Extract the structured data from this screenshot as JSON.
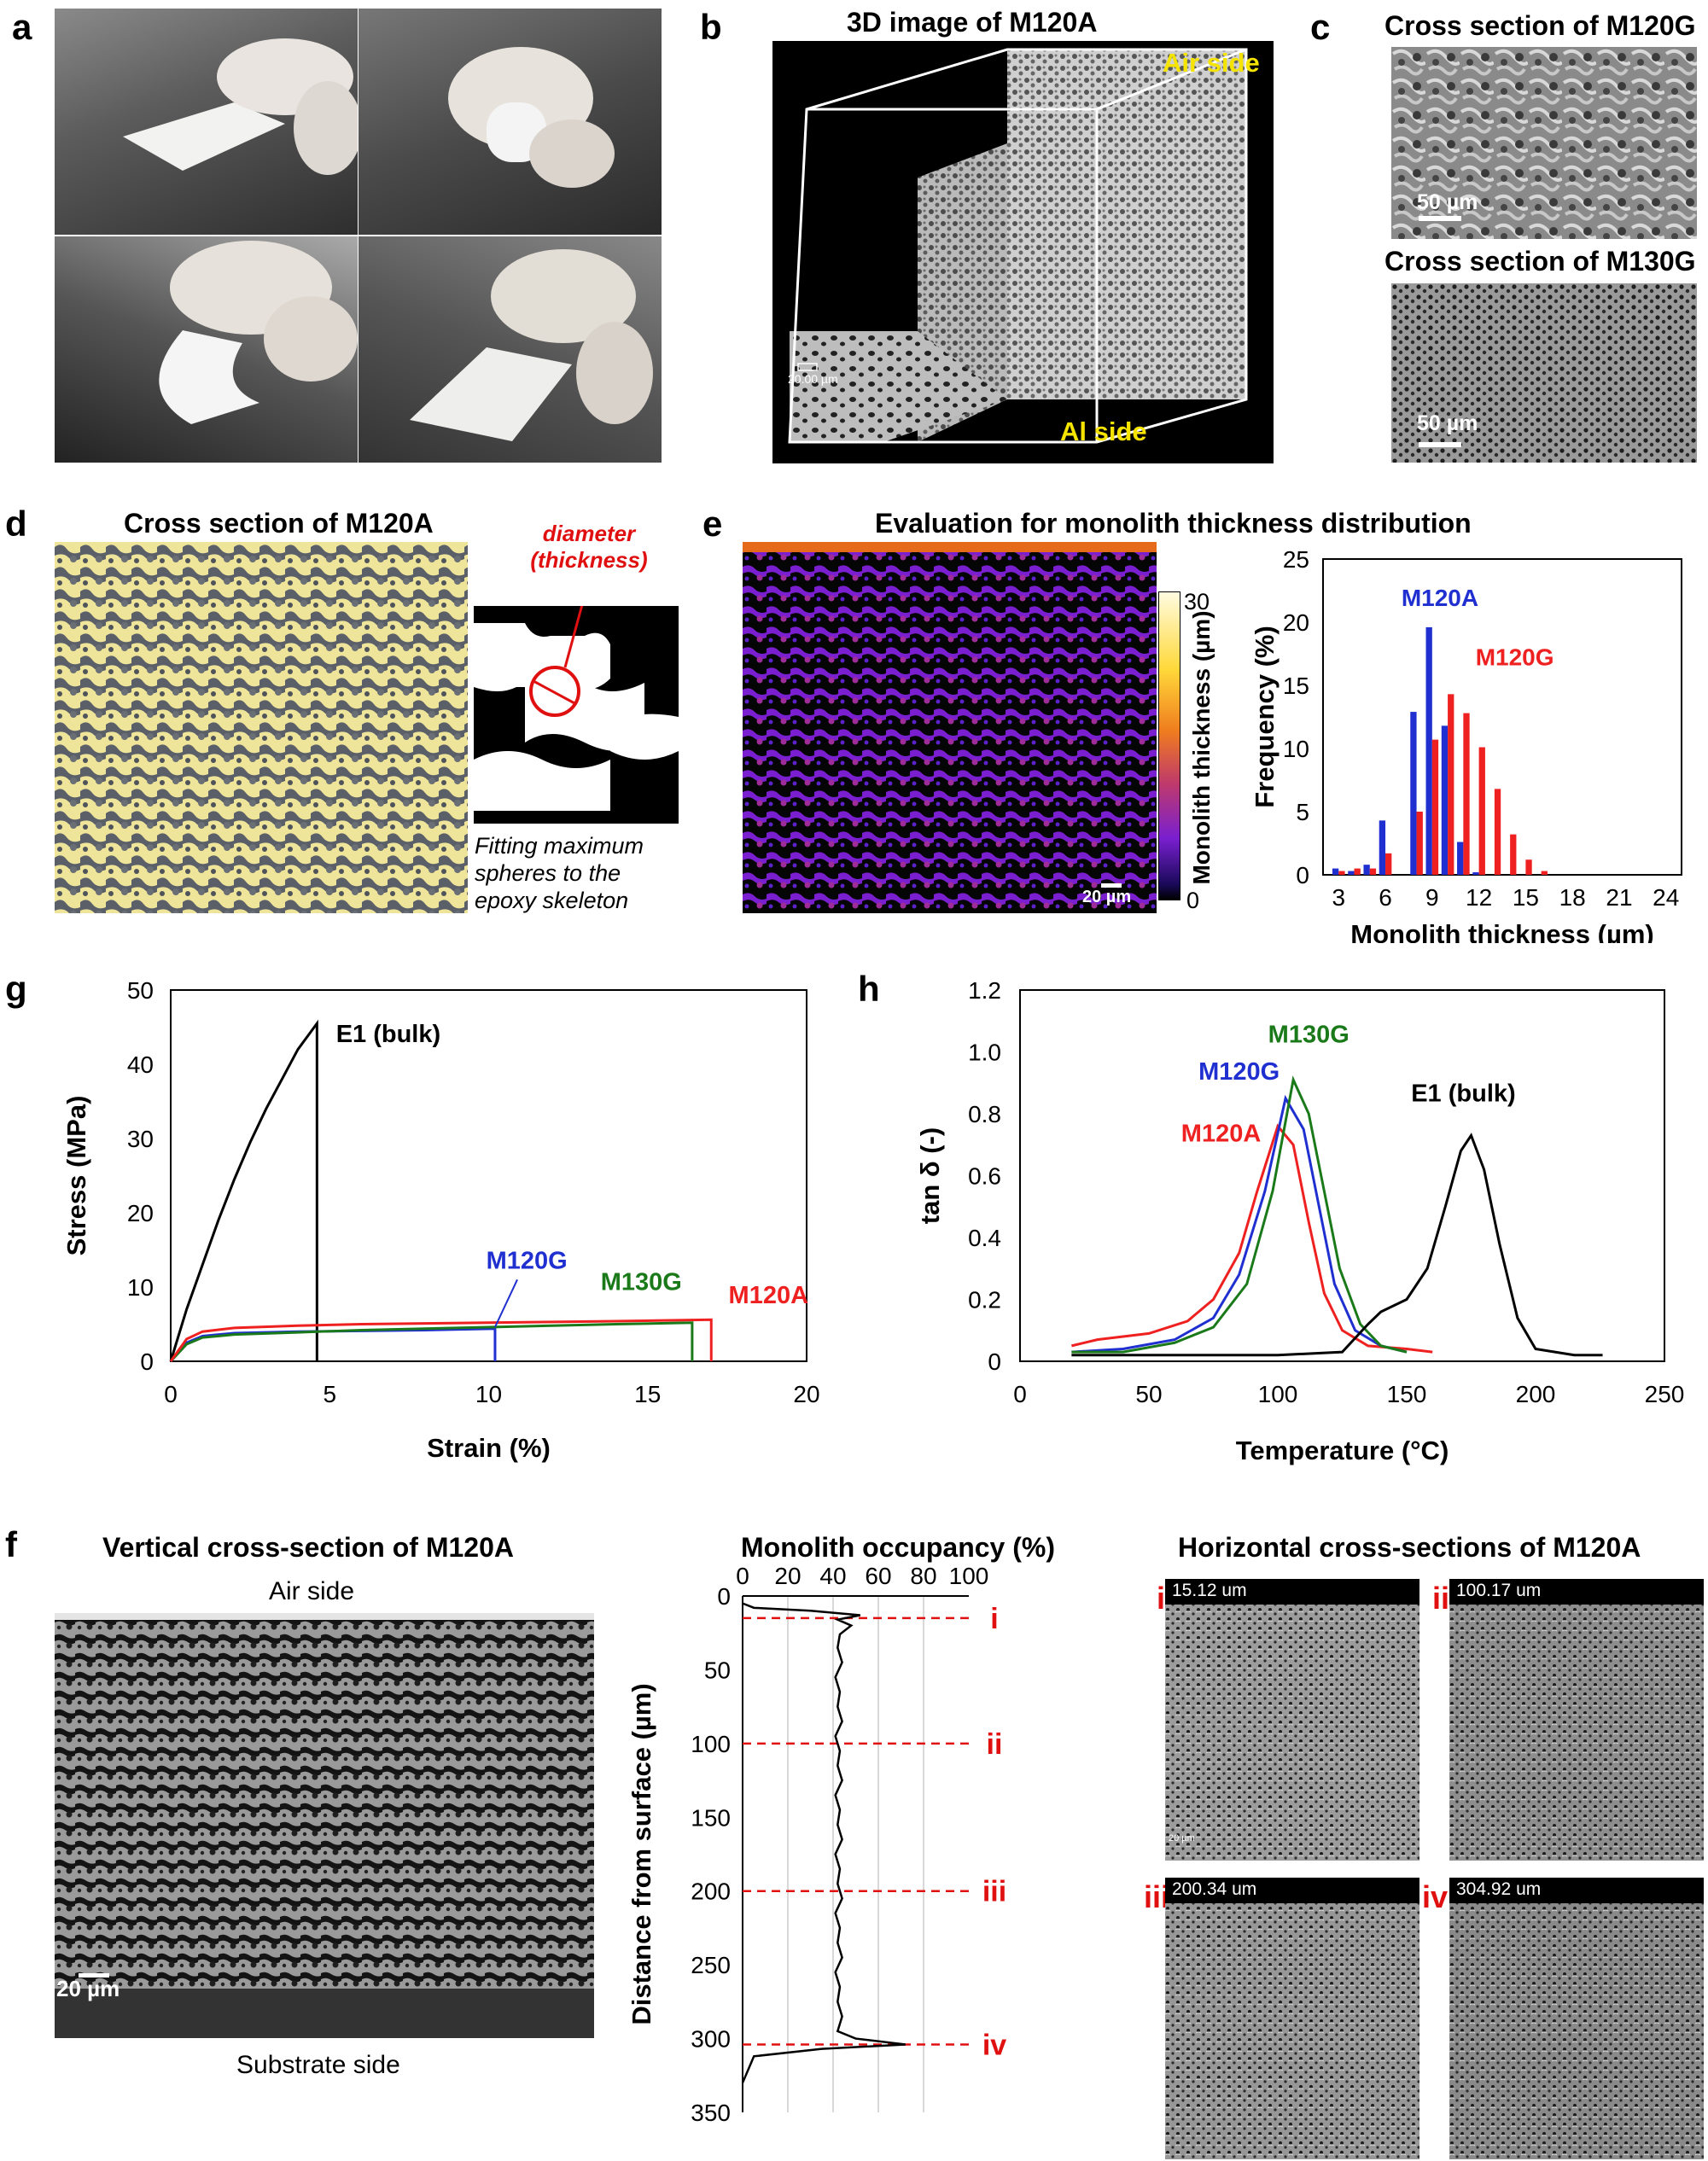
{
  "panels": {
    "a": {
      "label": "a"
    },
    "b": {
      "label": "b",
      "title": "3D image of M120A",
      "air": "Air side",
      "al": "Al side",
      "scale": "20.00 µm"
    },
    "c": {
      "label": "c",
      "title1": "Cross section of M120G",
      "title2": "Cross section of M130G",
      "scale": "50 µm"
    },
    "d": {
      "label": "d",
      "title": "Cross section of M120A",
      "annot": "diameter",
      "annot2": "(thickness)",
      "caption1": "Fitting maximum",
      "caption2": "spheres to the",
      "caption3": "epoxy skeleton"
    },
    "e": {
      "label": "e",
      "title": "Evaluation for monolith thickness distribution",
      "scale": "20 µm",
      "cbar_label": "Monolith thickness (µm)",
      "cbar_max": "30",
      "cbar_min": "0"
    },
    "g": {
      "label": "g"
    },
    "h": {
      "label": "h"
    },
    "f": {
      "label": "f",
      "title_vert": "Vertical cross-section of M120A",
      "air": "Air side",
      "substrate": "Substrate side",
      "scale": "20 µm",
      "occ_title": "Monolith occupancy (%)",
      "horiz_title": "Horizontal cross-sections of M120A",
      "horiz": [
        {
          "roman": "i",
          "depth": "15.12 um"
        },
        {
          "roman": "ii",
          "depth": "100.17 um"
        },
        {
          "roman": "iii",
          "depth": "200.34 um"
        },
        {
          "roman": "iv",
          "depth": "304.92 um"
        }
      ],
      "mini_scale": "20 µm"
    }
  },
  "chart_data": [
    {
      "id": "e-histogram",
      "type": "bar",
      "xlabel": "Monolith thickness (µm)",
      "ylabel": "Frequency (%)",
      "ylim": [
        0,
        25
      ],
      "yticks": [
        0,
        5,
        10,
        15,
        20,
        25
      ],
      "xticks": [
        3,
        6,
        9,
        12,
        15,
        18,
        21,
        24
      ],
      "x": [
        3,
        4,
        5,
        6,
        7,
        8,
        9,
        10,
        11,
        12,
        13,
        14,
        15,
        16,
        17,
        18,
        19,
        20,
        21,
        22,
        23,
        24
      ],
      "series": [
        {
          "name": "M120A",
          "color": "#1f2fd0",
          "values": [
            0.5,
            0.3,
            0.8,
            4.3,
            0,
            12.9,
            19.6,
            11.8,
            2.6,
            0.2,
            0,
            0,
            0,
            0,
            0,
            0,
            0,
            0,
            0,
            0,
            0,
            0
          ]
        },
        {
          "name": "M120G",
          "color": "#ee2020",
          "values": [
            0.3,
            0.5,
            0.5,
            1.7,
            0,
            5,
            10.7,
            14.3,
            12.8,
            10.1,
            6.8,
            3.2,
            1.2,
            0.3,
            0,
            0,
            0,
            0,
            0,
            0,
            0,
            0
          ]
        }
      ]
    },
    {
      "id": "g-stress-strain",
      "type": "line",
      "xlabel": "Strain (%)",
      "ylabel": "Stress (MPa)",
      "xlim": [
        0,
        20
      ],
      "ylim": [
        0,
        50
      ],
      "xticks": [
        0,
        5,
        10,
        15,
        20
      ],
      "yticks": [
        0,
        10,
        20,
        30,
        40,
        50
      ],
      "series": [
        {
          "name": "E1 (bulk)",
          "color": "#000000",
          "points": [
            [
              0,
              0
            ],
            [
              0.5,
              7
            ],
            [
              1,
              13
            ],
            [
              1.5,
              19
            ],
            [
              2,
              24.5
            ],
            [
              2.5,
              29.5
            ],
            [
              3,
              34
            ],
            [
              3.5,
              38
            ],
            [
              4,
              42
            ],
            [
              4.6,
              45.5
            ],
            [
              4.6,
              0
            ]
          ]
        },
        {
          "name": "M120G",
          "color": "#1f2fd0",
          "points": [
            [
              0,
              0
            ],
            [
              0.5,
              2.5
            ],
            [
              1,
              3.4
            ],
            [
              2,
              3.8
            ],
            [
              4,
              4.0
            ],
            [
              6,
              4.1
            ],
            [
              8,
              4.2
            ],
            [
              10.2,
              4.4
            ],
            [
              10.2,
              0
            ]
          ]
        },
        {
          "name": "M130G",
          "color": "#1a7a1a",
          "points": [
            [
              0,
              0
            ],
            [
              0.5,
              2.3
            ],
            [
              1,
              3.2
            ],
            [
              2,
              3.6
            ],
            [
              4,
              3.9
            ],
            [
              6,
              4.2
            ],
            [
              8,
              4.4
            ],
            [
              10,
              4.6
            ],
            [
              12,
              4.8
            ],
            [
              14,
              5.0
            ],
            [
              16.4,
              5.2
            ],
            [
              16.4,
              0
            ]
          ]
        },
        {
          "name": "M120A",
          "color": "#ee2020",
          "points": [
            [
              0,
              0
            ],
            [
              0.5,
              3
            ],
            [
              1,
              4
            ],
            [
              2,
              4.5
            ],
            [
              4,
              4.8
            ],
            [
              6,
              5
            ],
            [
              8,
              5.1
            ],
            [
              10,
              5.2
            ],
            [
              12,
              5.3
            ],
            [
              14,
              5.4
            ],
            [
              17,
              5.6
            ],
            [
              17,
              0
            ]
          ]
        }
      ]
    },
    {
      "id": "h-tan-delta",
      "type": "line",
      "xlabel": "Temperature (°C)",
      "ylabel": "tan δ (-)",
      "xlim": [
        0,
        250
      ],
      "ylim": [
        0,
        1.2
      ],
      "xticks": [
        0,
        50,
        100,
        150,
        200,
        250
      ],
      "yticks": [
        0,
        0.2,
        0.4,
        0.6,
        0.8,
        1.0,
        1.2
      ],
      "ytick_labels": [
        "0",
        "0.2",
        "0.4",
        "0.6",
        "0.8",
        "1.0",
        "1.2"
      ],
      "series": [
        {
          "name": "M120A",
          "color": "#ee2020",
          "points": [
            [
              20,
              0.05
            ],
            [
              30,
              0.07
            ],
            [
              50,
              0.09
            ],
            [
              65,
              0.13
            ],
            [
              75,
              0.2
            ],
            [
              85,
              0.35
            ],
            [
              92,
              0.55
            ],
            [
              100,
              0.76
            ],
            [
              106,
              0.7
            ],
            [
              112,
              0.45
            ],
            [
              118,
              0.22
            ],
            [
              125,
              0.1
            ],
            [
              135,
              0.05
            ],
            [
              150,
              0.04
            ],
            [
              160,
              0.03
            ]
          ]
        },
        {
          "name": "M120G",
          "color": "#1f2fd0",
          "points": [
            [
              20,
              0.03
            ],
            [
              40,
              0.04
            ],
            [
              60,
              0.07
            ],
            [
              75,
              0.14
            ],
            [
              85,
              0.28
            ],
            [
              95,
              0.55
            ],
            [
              103,
              0.85
            ],
            [
              110,
              0.75
            ],
            [
              116,
              0.5
            ],
            [
              122,
              0.25
            ],
            [
              130,
              0.1
            ],
            [
              140,
              0.05
            ],
            [
              150,
              0.03
            ]
          ]
        },
        {
          "name": "M130G",
          "color": "#1a7a1a",
          "points": [
            [
              20,
              0.03
            ],
            [
              40,
              0.03
            ],
            [
              60,
              0.06
            ],
            [
              75,
              0.11
            ],
            [
              88,
              0.25
            ],
            [
              98,
              0.55
            ],
            [
              106,
              0.91
            ],
            [
              112,
              0.8
            ],
            [
              118,
              0.55
            ],
            [
              124,
              0.3
            ],
            [
              132,
              0.12
            ],
            [
              140,
              0.05
            ],
            [
              150,
              0.03
            ]
          ]
        },
        {
          "name": "E1 (bulk)",
          "color": "#000000",
          "points": [
            [
              20,
              0.02
            ],
            [
              60,
              0.02
            ],
            [
              100,
              0.02
            ],
            [
              125,
              0.03
            ],
            [
              135,
              0.12
            ],
            [
              140,
              0.16
            ],
            [
              150,
              0.2
            ],
            [
              158,
              0.3
            ],
            [
              165,
              0.5
            ],
            [
              171,
              0.68
            ],
            [
              175,
              0.73
            ],
            [
              180,
              0.62
            ],
            [
              186,
              0.38
            ],
            [
              193,
              0.14
            ],
            [
              200,
              0.04
            ],
            [
              215,
              0.02
            ],
            [
              226,
              0.02
            ]
          ]
        }
      ]
    },
    {
      "id": "f-occupancy",
      "type": "line",
      "xlabel": "Monolith occupancy (%)",
      "ylabel": "Distance from surface (µm)",
      "xlim": [
        0,
        100
      ],
      "ylim": [
        0,
        350
      ],
      "xticks": [
        0,
        20,
        40,
        60,
        80,
        100
      ],
      "yticks": [
        0,
        50,
        100,
        150,
        200,
        250,
        300,
        350
      ],
      "markers": [
        {
          "y": 15,
          "label": "i"
        },
        {
          "y": 100,
          "label": "ii"
        },
        {
          "y": 200,
          "label": "iii"
        },
        {
          "y": 304,
          "label": "iv"
        }
      ],
      "series": [
        {
          "name": "occupancy",
          "color": "#000000",
          "points": [
            [
              0,
              5
            ],
            [
              5,
              8
            ],
            [
              30,
              10
            ],
            [
              52,
              13
            ],
            [
              42,
              16
            ],
            [
              48,
              20
            ],
            [
              43,
              26
            ],
            [
              42,
              35
            ],
            [
              44,
              45
            ],
            [
              41,
              55
            ],
            [
              43,
              65
            ],
            [
              42,
              75
            ],
            [
              44,
              85
            ],
            [
              41,
              95
            ],
            [
              43,
              105
            ],
            [
              42,
              115
            ],
            [
              44,
              125
            ],
            [
              41,
              135
            ],
            [
              43,
              145
            ],
            [
              42,
              155
            ],
            [
              44,
              165
            ],
            [
              41,
              175
            ],
            [
              43,
              185
            ],
            [
              42,
              195
            ],
            [
              44,
              205
            ],
            [
              41,
              215
            ],
            [
              43,
              225
            ],
            [
              42,
              235
            ],
            [
              44,
              245
            ],
            [
              41,
              255
            ],
            [
              43,
              265
            ],
            [
              42,
              275
            ],
            [
              44,
              285
            ],
            [
              42,
              295
            ],
            [
              50,
              300
            ],
            [
              72,
              304
            ],
            [
              35,
              307
            ],
            [
              5,
              312
            ],
            [
              0,
              330
            ]
          ]
        }
      ]
    }
  ]
}
